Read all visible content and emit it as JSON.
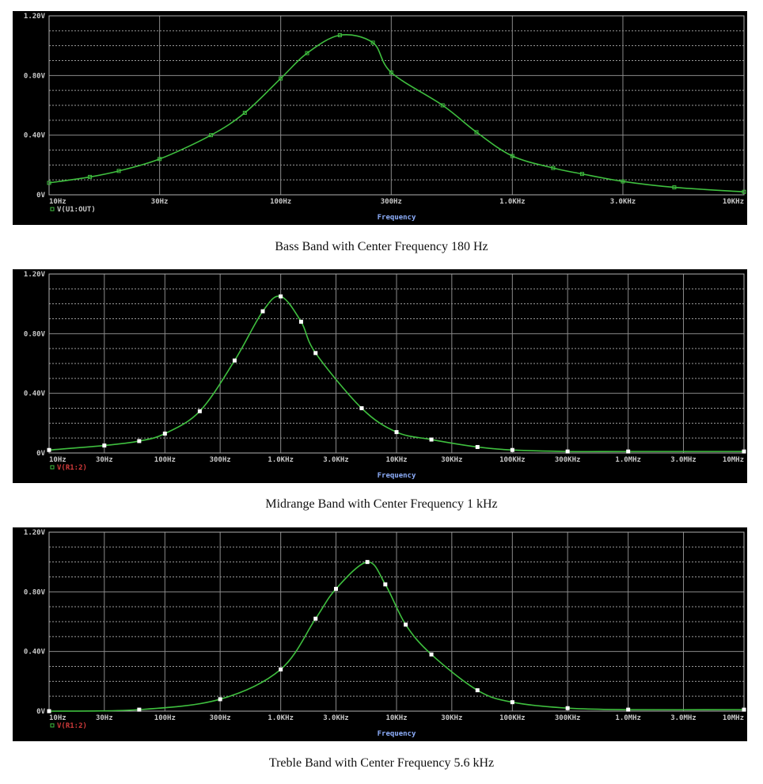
{
  "chart_data": [
    {
      "type": "line",
      "caption": "Bass Band with Center Frequency 180 Hz",
      "xlabel": "Frequency",
      "xscale": "log",
      "xlim": [
        10,
        10000
      ],
      "x_ticks": [
        10,
        30,
        100,
        300,
        1000,
        3000,
        10000
      ],
      "x_tick_labels": [
        "10Hz",
        "30Hz",
        "100Hz",
        "300Hz",
        "1.0KHz",
        "3.0KHz",
        "10KHz"
      ],
      "ylim": [
        0,
        1.2
      ],
      "y_ticks": [
        0,
        0.4,
        0.8,
        1.2
      ],
      "y_tick_labels": [
        "0V",
        "0.40V",
        "0.80V",
        "1.20V"
      ],
      "grid": true,
      "series": [
        {
          "name": "V(U1:OUT)",
          "legend_color": "#c8c8c8",
          "line_color": "#3fbf3f",
          "x": [
            10,
            15,
            20,
            30,
            50,
            70,
            100,
            130,
            180,
            250,
            300,
            500,
            700,
            1000,
            1500,
            2000,
            3000,
            5000,
            10000
          ],
          "y": [
            0.08,
            0.12,
            0.16,
            0.24,
            0.4,
            0.55,
            0.78,
            0.95,
            1.07,
            1.02,
            0.82,
            0.6,
            0.42,
            0.26,
            0.18,
            0.14,
            0.09,
            0.05,
            0.02
          ]
        }
      ]
    },
    {
      "type": "line",
      "caption": "Midrange Band with Center Frequency 1 kHz",
      "xlabel": "Frequency",
      "xscale": "log",
      "xlim": [
        10,
        10000000
      ],
      "x_ticks": [
        10,
        30,
        100,
        300,
        1000,
        3000,
        10000,
        30000,
        100000,
        300000,
        1000000,
        3000000,
        10000000
      ],
      "x_tick_labels": [
        "10Hz",
        "30Hz",
        "100Hz",
        "300Hz",
        "1.0KHz",
        "3.0KHz",
        "10KHz",
        "30KHz",
        "100KHz",
        "300KHz",
        "1.0MHz",
        "3.0MHz",
        "10MHz"
      ],
      "ylim": [
        0,
        1.2
      ],
      "y_ticks": [
        0,
        0.4,
        0.8,
        1.2
      ],
      "y_tick_labels": [
        "0V",
        "0.40V",
        "0.80V",
        "1.20V"
      ],
      "grid": true,
      "series": [
        {
          "name": "V(R1:2)",
          "legend_color": "#d03a3a",
          "line_color": "#3fbf3f",
          "x": [
            10,
            30,
            60,
            100,
            200,
            400,
            700,
            1000,
            1500,
            2000,
            5000,
            10000,
            20000,
            50000,
            100000,
            300000,
            1000000,
            10000000
          ],
          "y": [
            0.02,
            0.05,
            0.08,
            0.13,
            0.28,
            0.62,
            0.95,
            1.05,
            0.88,
            0.67,
            0.3,
            0.14,
            0.09,
            0.04,
            0.02,
            0.01,
            0.01,
            0.01
          ]
        }
      ]
    },
    {
      "type": "line",
      "caption": "Treble Band with Center Frequency 5.6 kHz",
      "xlabel": "Frequency",
      "xscale": "log",
      "xlim": [
        10,
        10000000
      ],
      "x_ticks": [
        10,
        30,
        100,
        300,
        1000,
        3000,
        10000,
        30000,
        100000,
        300000,
        1000000,
        3000000,
        10000000
      ],
      "x_tick_labels": [
        "10Hz",
        "30Hz",
        "100Hz",
        "300Hz",
        "1.0KHz",
        "3.0KHz",
        "10KHz",
        "30KHz",
        "100KHz",
        "300KHz",
        "1.0MHz",
        "3.0MHz",
        "10MHz"
      ],
      "ylim": [
        0,
        1.2
      ],
      "y_ticks": [
        0,
        0.4,
        0.8,
        1.2
      ],
      "y_tick_labels": [
        "0V",
        "0.40V",
        "0.80V",
        "1.20V"
      ],
      "grid": true,
      "series": [
        {
          "name": "V(R1:2)",
          "legend_color": "#d03a3a",
          "line_color": "#3fbf3f",
          "x": [
            10,
            60,
            300,
            1000,
            2000,
            3000,
            5600,
            8000,
            12000,
            20000,
            50000,
            100000,
            300000,
            1000000,
            10000000
          ],
          "y": [
            0.0,
            0.01,
            0.08,
            0.28,
            0.62,
            0.82,
            1.0,
            0.85,
            0.58,
            0.38,
            0.14,
            0.06,
            0.02,
            0.01,
            0.01
          ]
        }
      ]
    }
  ]
}
